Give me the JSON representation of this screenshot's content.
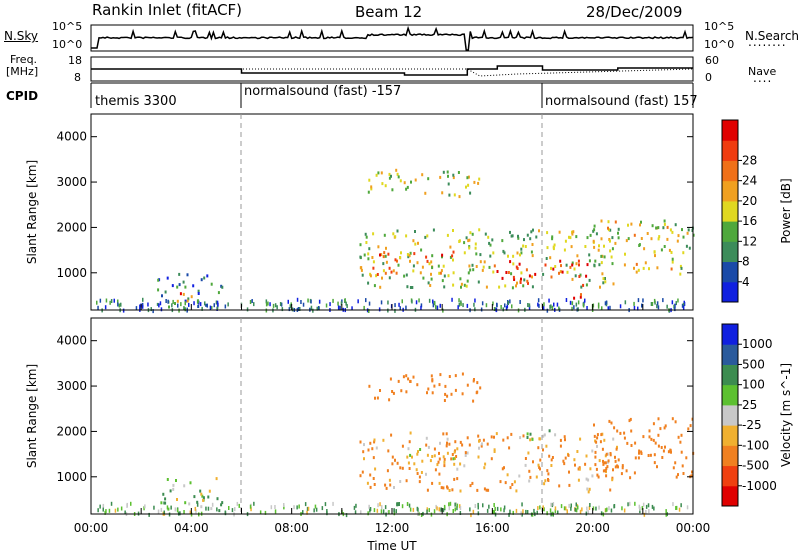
{
  "header": {
    "site": "Rankin Inlet (fitACF)",
    "beam": "Beam 12",
    "date": "28/Dec/2009"
  },
  "nsky_panel": {
    "left_label": "N.Sky",
    "right_label": "N.Search",
    "left_ticks": [
      "10^5",
      "10^0"
    ],
    "right_ticks": [
      "10^5",
      "10^0"
    ],
    "scale": "log"
  },
  "freq_panel": {
    "left_label_line1": "Freq.",
    "left_label_line2": "[MHz]",
    "right_label": "Nave",
    "left_ticks": [
      "18",
      "8"
    ],
    "right_ticks": [
      "60",
      "0"
    ]
  },
  "cpid_panel": {
    "label": "CPID",
    "segments": [
      {
        "label": "themis 3300",
        "start_hour": 0,
        "end_hour": 6
      },
      {
        "label": "normalsound (fast) -157",
        "start_hour": 6,
        "end_hour": 18
      },
      {
        "label": "normalsound (fast) 157",
        "start_hour": 18,
        "end_hour": 24
      }
    ]
  },
  "colors": {
    "power_scale": [
      "#1020e0",
      "#1a4aa8",
      "#3c8c5a",
      "#4fa83c",
      "#e0d820",
      "#f0a020",
      "#f07018",
      "#f03c10",
      "#e00000"
    ],
    "velocity_scale": [
      "#e00000",
      "#f04010",
      "#f08020",
      "#f0b030",
      "#c8c8c8",
      "#5cc030",
      "#3c8c50",
      "#2a5a9c",
      "#1020e0"
    ]
  },
  "chart_data": [
    {
      "type": "heatmap",
      "title": "",
      "xlabel": "",
      "ylabel": "Slant Range [km]",
      "xlim": [
        0,
        24
      ],
      "ylim": [
        180,
        4500
      ],
      "yticks": [
        "1000",
        "2000",
        "3000",
        "4000"
      ],
      "colorbar": {
        "label": "Power [dB]",
        "ticks": [
          "4",
          "8",
          "12",
          "16",
          "20",
          "24",
          "28"
        ]
      },
      "regions": [
        {
          "x": [
            2.6,
            5.2
          ],
          "y": [
            250,
            1000
          ],
          "value": 6
        },
        {
          "x": [
            3.3,
            4.3
          ],
          "y": [
            380,
            650
          ],
          "value": 26
        },
        {
          "x": [
            10.7,
            21.0
          ],
          "y": [
            700,
            2000
          ],
          "value": 14
        },
        {
          "x": [
            11.0,
            14.5
          ],
          "y": [
            900,
            1500
          ],
          "value": 24
        },
        {
          "x": [
            16.0,
            19.8
          ],
          "y": [
            800,
            1300
          ],
          "value": 30
        },
        {
          "x": [
            19.0,
            19.6
          ],
          "y": [
            400,
            800
          ],
          "value": 30
        },
        {
          "x": [
            20.0,
            24.0
          ],
          "y": [
            1000,
            2200
          ],
          "value": 16
        },
        {
          "x": [
            11.0,
            15.5
          ],
          "y": [
            2700,
            3300
          ],
          "value": 14
        }
      ]
    },
    {
      "type": "heatmap",
      "title": "",
      "xlabel": "Time UT",
      "ylabel": "Slant Range [km]",
      "xlim": [
        0,
        24
      ],
      "ylim": [
        180,
        4500
      ],
      "yticks": [
        "1000",
        "2000",
        "3000",
        "4000"
      ],
      "xticks": [
        "00:00",
        "04:00",
        "08:00",
        "12:00",
        "16:00",
        "20:00",
        "00:00"
      ],
      "colorbar": {
        "label": "Velocity [m s^-1]",
        "ticks": [
          "1000",
          "500",
          "100",
          "25",
          "-25",
          "-100",
          "-500",
          "-1000"
        ]
      },
      "regions": [
        {
          "x": [
            2.6,
            5.2
          ],
          "y": [
            250,
            1000
          ],
          "value": 80
        },
        {
          "x": [
            10.7,
            21.0
          ],
          "y": [
            700,
            2000
          ],
          "value": -120
        },
        {
          "x": [
            12.5,
            14.5
          ],
          "y": [
            1300,
            1800
          ],
          "value": 0
        },
        {
          "x": [
            17.0,
            18.5
          ],
          "y": [
            1800,
            2100
          ],
          "value": 0
        },
        {
          "x": [
            20.0,
            24.0
          ],
          "y": [
            1000,
            2400
          ],
          "value": -300
        },
        {
          "x": [
            11.0,
            15.5
          ],
          "y": [
            2700,
            3300
          ],
          "value": -300
        }
      ]
    }
  ]
}
